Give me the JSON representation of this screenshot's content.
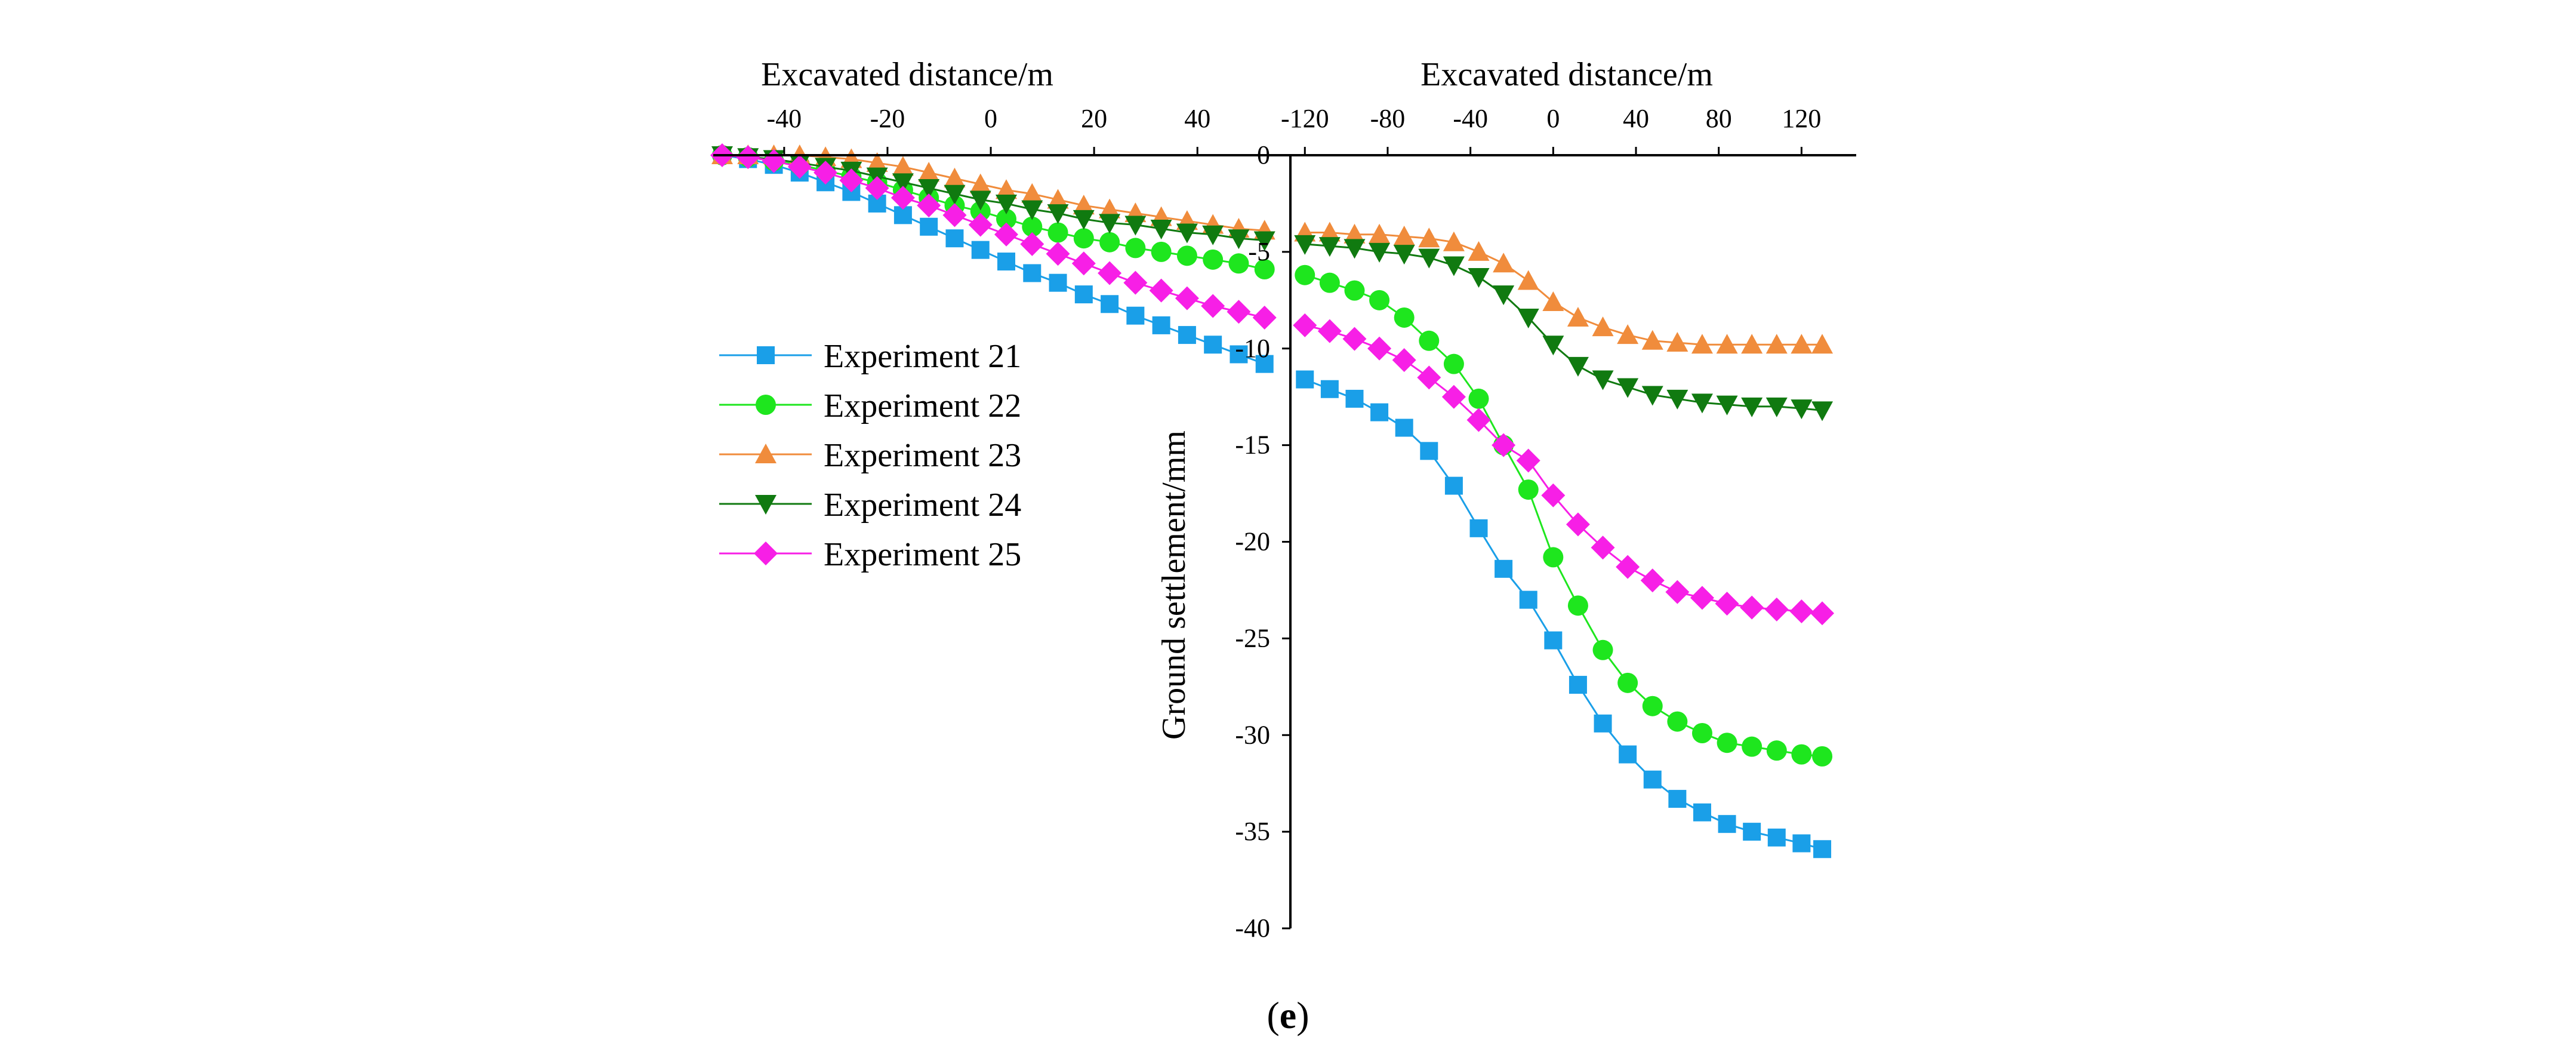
{
  "caption": {
    "open": "(",
    "letter": "e",
    "close": ")"
  },
  "chart_data": {
    "type": "line",
    "title": "",
    "x_top_left_label": "Excavated distance/m",
    "x_top_right_label": "Excavated distance/m",
    "ylabel": "Ground settlement/mm",
    "ylim": [
      -40,
      0
    ],
    "y_ticks": [
      0,
      -5,
      -10,
      -15,
      -20,
      -25,
      -30,
      -35,
      -40
    ],
    "x_left_ticks": [
      -40,
      -20,
      0,
      20,
      40
    ],
    "x_left_range": [
      -52,
      58
    ],
    "x_right_ticks": [
      -120,
      -80,
      -40,
      0,
      40,
      80,
      120
    ],
    "x_right_range": [
      -127,
      132
    ],
    "legend_position": "left",
    "series": [
      {
        "name": "Experiment 21",
        "color": "#1a9fe8",
        "marker": "square",
        "left_x": [
          -52,
          -47,
          -42,
          -37,
          -32,
          -27,
          -22,
          -17,
          -12,
          -7,
          -2,
          3,
          8,
          13,
          18,
          23,
          28,
          33,
          38,
          43,
          48,
          53
        ],
        "left_y": [
          0,
          -0.2,
          -0.5,
          -0.9,
          -1.4,
          -1.9,
          -2.5,
          -3.1,
          -3.7,
          -4.3,
          -4.9,
          -5.5,
          -6.1,
          -6.6,
          -7.2,
          -7.7,
          -8.3,
          -8.8,
          -9.3,
          -9.8,
          -10.3,
          -10.8
        ],
        "right_x": [
          -120,
          -108,
          -96,
          -84,
          -72,
          -60,
          -48,
          -36,
          -24,
          -12,
          0,
          12,
          24,
          36,
          48,
          60,
          72,
          84,
          96,
          108,
          120,
          130
        ],
        "right_y": [
          -11.6,
          -12.1,
          -12.6,
          -13.3,
          -14.1,
          -15.3,
          -17.1,
          -19.3,
          -21.4,
          -23.0,
          -25.1,
          -27.4,
          -29.4,
          -31.0,
          -32.3,
          -33.3,
          -34.0,
          -34.6,
          -35.0,
          -35.3,
          -35.6,
          -35.9
        ]
      },
      {
        "name": "Experiment 22",
        "color": "#1ee61e",
        "marker": "circle",
        "left_x": [
          -52,
          -47,
          -42,
          -37,
          -32,
          -27,
          -22,
          -17,
          -12,
          -7,
          -2,
          3,
          8,
          13,
          18,
          23,
          28,
          33,
          38,
          43,
          48,
          53
        ],
        "left_y": [
          0,
          -0.1,
          -0.3,
          -0.5,
          -0.8,
          -1.1,
          -1.4,
          -1.8,
          -2.2,
          -2.6,
          -2.9,
          -3.3,
          -3.7,
          -4.0,
          -4.3,
          -4.5,
          -4.8,
          -5.0,
          -5.2,
          -5.4,
          -5.6,
          -5.9
        ],
        "right_x": [
          -120,
          -108,
          -96,
          -84,
          -72,
          -60,
          -48,
          -36,
          -24,
          -12,
          0,
          12,
          24,
          36,
          48,
          60,
          72,
          84,
          96,
          108,
          120,
          130
        ],
        "right_y": [
          -6.2,
          -6.6,
          -7.0,
          -7.5,
          -8.4,
          -9.6,
          -10.8,
          -12.6,
          -15.0,
          -17.3,
          -20.8,
          -23.3,
          -25.6,
          -27.3,
          -28.5,
          -29.3,
          -29.9,
          -30.4,
          -30.6,
          -30.8,
          -31.0,
          -31.1
        ]
      },
      {
        "name": "Experiment 23",
        "color": "#f08c3c",
        "marker": "triangle-up",
        "left_x": [
          -52,
          -47,
          -42,
          -37,
          -32,
          -27,
          -22,
          -17,
          -12,
          -7,
          -2,
          3,
          8,
          13,
          18,
          23,
          28,
          33,
          38,
          43,
          48,
          53
        ],
        "left_y": [
          0,
          0,
          0,
          0,
          -0.1,
          -0.2,
          -0.4,
          -0.6,
          -0.9,
          -1.2,
          -1.5,
          -1.8,
          -2.0,
          -2.3,
          -2.6,
          -2.8,
          -3.0,
          -3.2,
          -3.4,
          -3.6,
          -3.8,
          -3.9
        ],
        "right_x": [
          -120,
          -108,
          -96,
          -84,
          -72,
          -60,
          -48,
          -36,
          -24,
          -12,
          0,
          12,
          24,
          36,
          48,
          60,
          72,
          84,
          96,
          108,
          120,
          130
        ],
        "right_y": [
          -4.0,
          -4.0,
          -4.1,
          -4.1,
          -4.2,
          -4.3,
          -4.5,
          -5.0,
          -5.6,
          -6.5,
          -7.6,
          -8.4,
          -8.9,
          -9.3,
          -9.6,
          -9.7,
          -9.8,
          -9.8,
          -9.8,
          -9.8,
          -9.8,
          -9.8
        ]
      },
      {
        "name": "Experiment 24",
        "color": "#107a10",
        "marker": "triangle-down",
        "left_x": [
          -52,
          -47,
          -42,
          -37,
          -32,
          -27,
          -22,
          -17,
          -12,
          -7,
          -2,
          3,
          8,
          13,
          18,
          23,
          28,
          33,
          38,
          43,
          48,
          53
        ],
        "left_y": [
          0,
          -0.1,
          -0.2,
          -0.4,
          -0.6,
          -0.8,
          -1.1,
          -1.4,
          -1.7,
          -2.0,
          -2.3,
          -2.5,
          -2.8,
          -3.0,
          -3.3,
          -3.5,
          -3.6,
          -3.8,
          -4.0,
          -4.1,
          -4.3,
          -4.4
        ],
        "right_x": [
          -120,
          -108,
          -96,
          -84,
          -72,
          -60,
          -48,
          -36,
          -24,
          -12,
          0,
          12,
          24,
          36,
          48,
          60,
          72,
          84,
          96,
          108,
          120,
          130
        ],
        "right_y": [
          -4.6,
          -4.7,
          -4.8,
          -5.0,
          -5.1,
          -5.3,
          -5.7,
          -6.3,
          -7.2,
          -8.4,
          -9.8,
          -10.9,
          -11.6,
          -12.0,
          -12.4,
          -12.6,
          -12.8,
          -12.9,
          -13.0,
          -13.0,
          -13.1,
          -13.2
        ]
      },
      {
        "name": "Experiment 25",
        "color": "#f71fe6",
        "marker": "diamond",
        "left_x": [
          -52,
          -47,
          -42,
          -37,
          -32,
          -27,
          -22,
          -17,
          -12,
          -7,
          -2,
          3,
          8,
          13,
          18,
          23,
          28,
          33,
          38,
          43,
          48,
          53
        ],
        "left_y": [
          0,
          -0.1,
          -0.3,
          -0.6,
          -0.9,
          -1.3,
          -1.7,
          -2.2,
          -2.6,
          -3.1,
          -3.6,
          -4.1,
          -4.6,
          -5.1,
          -5.6,
          -6.1,
          -6.6,
          -7.0,
          -7.4,
          -7.8,
          -8.1,
          -8.4
        ],
        "right_x": [
          -120,
          -108,
          -96,
          -84,
          -72,
          -60,
          -48,
          -36,
          -24,
          -12,
          0,
          12,
          24,
          36,
          48,
          60,
          72,
          84,
          96,
          108,
          120,
          130
        ],
        "right_y": [
          -8.8,
          -9.1,
          -9.5,
          -10.0,
          -10.6,
          -11.5,
          -12.5,
          -13.7,
          -15.0,
          -15.8,
          -17.6,
          -19.1,
          -20.3,
          -21.3,
          -22.0,
          -22.6,
          -22.9,
          -23.2,
          -23.4,
          -23.5,
          -23.6,
          -23.7
        ]
      }
    ]
  }
}
